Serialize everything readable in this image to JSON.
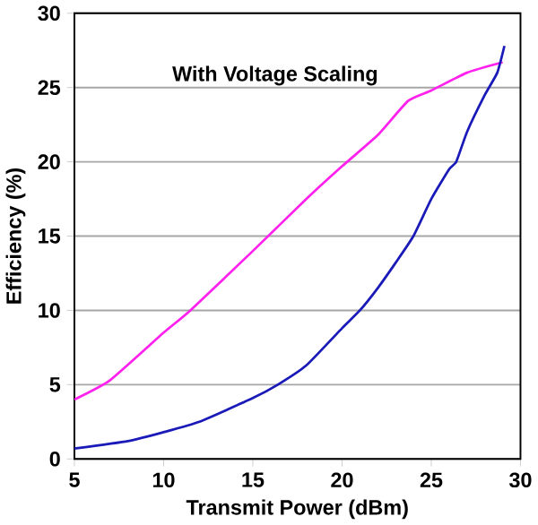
{
  "chart_data": {
    "type": "line",
    "xlabel": "Transmit Power (dBm)",
    "ylabel": "Efficiency (%)",
    "annotations": [
      "With Voltage Scaling"
    ],
    "xlim": [
      5,
      30
    ],
    "ylim": [
      0,
      30
    ],
    "xticks": [
      5,
      10,
      15,
      20,
      25,
      30
    ],
    "yticks": [
      0,
      5,
      10,
      15,
      20,
      25,
      30
    ],
    "grid": "y",
    "marker": "none",
    "series": [
      {
        "color": "#ff22ee",
        "x": [
          5,
          7,
          10,
          11.5,
          15,
          18,
          20,
          22,
          23.7,
          25,
          27,
          29
        ],
        "values": [
          4,
          5.3,
          8.5,
          10,
          14,
          17.5,
          19.7,
          21.8,
          24.1,
          24.8,
          26,
          26.7
        ]
      },
      {
        "color": "#1a1ab8",
        "x": [
          5,
          8,
          10,
          12,
          15,
          16.4,
          18,
          20,
          21,
          22,
          23,
          24,
          25,
          26,
          26.4,
          27,
          28,
          28.7,
          29.1
        ],
        "values": [
          0.7,
          1.2,
          1.8,
          2.5,
          4.1,
          5,
          6.3,
          8.8,
          10,
          11.5,
          13.2,
          15,
          17.5,
          19.5,
          20,
          22,
          24.5,
          26,
          27.8
        ]
      }
    ]
  }
}
